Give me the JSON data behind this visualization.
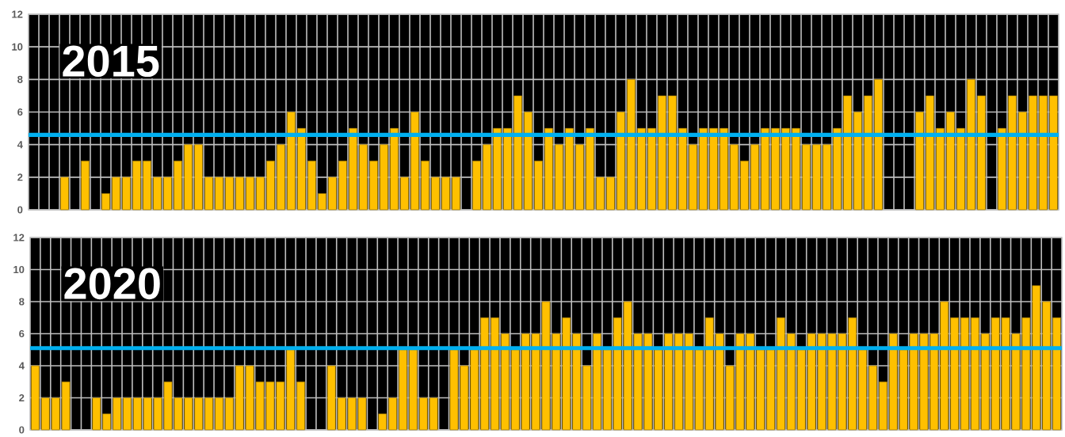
{
  "chart_data": [
    {
      "type": "bar",
      "title": "2015",
      "categories": [
        null,
        null,
        null,
        null,
        null,
        null,
        null,
        null,
        null,
        null,
        null,
        null,
        null,
        null,
        null,
        null,
        null,
        null,
        null,
        null,
        null,
        null,
        null,
        null,
        null,
        null,
        null,
        null,
        null,
        null,
        null,
        null,
        null,
        null,
        null,
        null,
        null,
        null,
        null,
        null,
        null,
        null,
        null,
        null,
        null,
        null,
        null,
        null,
        null,
        null,
        null,
        null,
        null,
        null,
        null,
        null,
        null,
        null,
        null,
        null,
        null,
        null,
        null,
        null,
        null,
        null,
        null,
        null,
        null,
        null,
        null,
        null,
        null,
        null,
        null,
        null,
        null,
        null,
        null,
        null,
        null,
        null,
        null,
        null,
        null,
        null,
        null,
        null,
        null,
        null,
        null,
        null,
        null,
        null,
        null,
        null,
        null,
        null,
        null,
        null
      ],
      "values": [
        null,
        null,
        null,
        2,
        null,
        3,
        null,
        1,
        2,
        2,
        3,
        3,
        2,
        2,
        3,
        4,
        4,
        2,
        2,
        2,
        2,
        2,
        2,
        3,
        4,
        6,
        5,
        3,
        1,
        2,
        3,
        5,
        4,
        3,
        4,
        5,
        2,
        6,
        3,
        2,
        2,
        2,
        null,
        3,
        4,
        5,
        5,
        7,
        6,
        3,
        5,
        4,
        5,
        4,
        5,
        2,
        2,
        6,
        8,
        5,
        5,
        7,
        7,
        5,
        4,
        5,
        5,
        5,
        4,
        3,
        4,
        5,
        5,
        5,
        5,
        4,
        4,
        4,
        5,
        7,
        6,
        7,
        8,
        null,
        null,
        null,
        6,
        7,
        5,
        6,
        5,
        8,
        7,
        null,
        5,
        7,
        6,
        7,
        7,
        7
      ],
      "color": "#ffc000",
      "ylim": [
        0,
        12
      ],
      "yticks": [
        0,
        2,
        4,
        6,
        8,
        10,
        12
      ],
      "grid": true,
      "tick_labels": "y",
      "ref_lines": [
        {
          "axis": "y",
          "value": 4.6,
          "color": "#00b0f0"
        }
      ]
    },
    {
      "type": "bar",
      "title": "2020",
      "categories": [
        null,
        null,
        null,
        null,
        null,
        null,
        null,
        null,
        null,
        null,
        null,
        null,
        null,
        null,
        null,
        null,
        null,
        null,
        null,
        null,
        null,
        null,
        null,
        null,
        null,
        null,
        null,
        null,
        null,
        null,
        null,
        null,
        null,
        null,
        null,
        null,
        null,
        null,
        null,
        null,
        null,
        null,
        null,
        null,
        null,
        null,
        null,
        null,
        null,
        null,
        null,
        null,
        null,
        null,
        null,
        null,
        null,
        null,
        null,
        null,
        null,
        null,
        null,
        null,
        null,
        null,
        null,
        null,
        null,
        null,
        null,
        null,
        null,
        null,
        null,
        null,
        null,
        null,
        null,
        null,
        null,
        null,
        null,
        null,
        null,
        null,
        null,
        null,
        null,
        null,
        null,
        null,
        null,
        null,
        null,
        null,
        null,
        null,
        null,
        null,
        null
      ],
      "values": [
        4,
        2,
        2,
        3,
        null,
        null,
        2,
        1,
        2,
        2,
        2,
        2,
        2,
        3,
        2,
        2,
        2,
        2,
        2,
        2,
        4,
        4,
        3,
        3,
        3,
        5,
        3,
        null,
        null,
        4,
        2,
        2,
        2,
        null,
        1,
        2,
        5,
        5,
        2,
        2,
        null,
        5,
        4,
        5,
        7,
        7,
        6,
        5,
        6,
        6,
        8,
        6,
        7,
        6,
        4,
        6,
        5,
        7,
        8,
        6,
        6,
        5,
        6,
        6,
        6,
        5,
        7,
        6,
        4,
        6,
        6,
        5,
        5,
        7,
        6,
        5,
        6,
        6,
        6,
        6,
        7,
        5,
        4,
        3,
        6,
        5,
        6,
        6,
        6,
        8,
        7,
        7,
        7,
        6,
        7,
        7,
        6,
        7,
        9,
        8,
        7
      ],
      "color": "#ffc000",
      "ylim": [
        0,
        12
      ],
      "yticks": [
        0,
        2,
        4,
        6,
        8,
        10,
        12
      ],
      "grid": true,
      "tick_labels": "y",
      "ref_lines": [
        {
          "axis": "y",
          "value": 5.1,
          "color": "#00b0f0"
        }
      ]
    }
  ]
}
